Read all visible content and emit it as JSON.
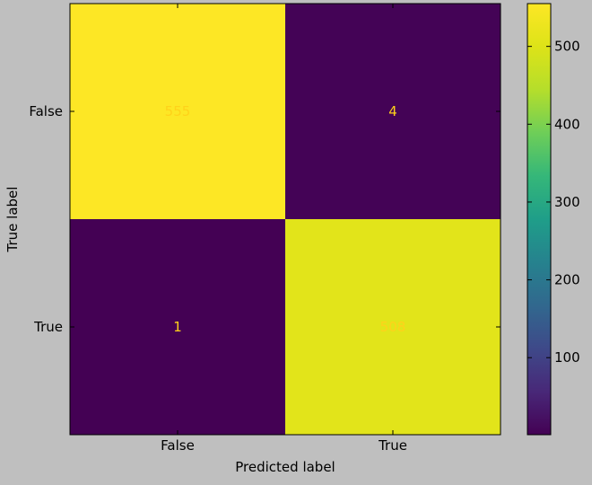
{
  "chart_data": {
    "type": "heatmap",
    "xlabel": "Predicted label",
    "ylabel": "True label",
    "x_categories": [
      "False",
      "True"
    ],
    "y_categories": [
      "False",
      "True"
    ],
    "values": [
      [
        555,
        4
      ],
      [
        1,
        508
      ]
    ],
    "colormap": "viridis",
    "colorbar": {
      "ticks": [
        100,
        200,
        300,
        400,
        500
      ],
      "vmin": 1,
      "vmax": 555
    },
    "text_color": "#ffd21a",
    "background_color": "#bfbfbf"
  }
}
